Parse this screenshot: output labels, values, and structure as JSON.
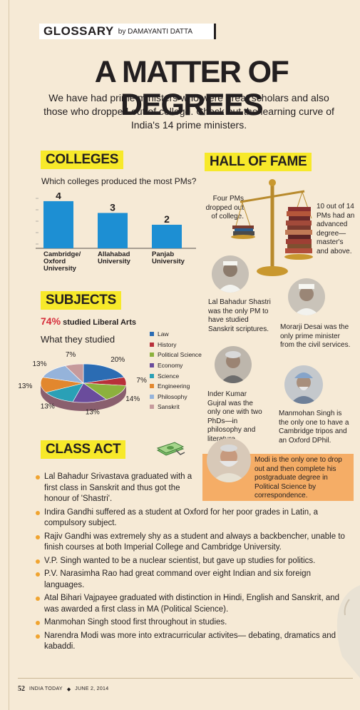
{
  "header": {
    "section": "GLOSSARY",
    "byline": "by DAMAYANTI DATTA"
  },
  "title": "A MATTER OF DEGREES",
  "intro": "We have had prime ministers who were great scholars and also those who dropped out of college. Check out the learning curve of India's 14 prime ministers.",
  "colleges": {
    "heading": "COLLEGES",
    "question": "Which colleges produced the most PMs?"
  },
  "subjects": {
    "heading": "SUBJECTS",
    "stat_pct": "74%",
    "stat_text": "studied Liberal Arts",
    "subheading": "What they studied"
  },
  "chart_data": [
    {
      "type": "bar",
      "title": "Which colleges produced the most PMs?",
      "categories": [
        "Cambridge/ Oxford University",
        "Allahabad University",
        "Panjab University"
      ],
      "category_lines": [
        [
          "Cambridge/",
          "Oxford",
          "University"
        ],
        [
          "Allahabad",
          "University"
        ],
        [
          "Panjab",
          "University"
        ]
      ],
      "values": [
        4,
        3,
        2
      ],
      "value_labels": [
        "4",
        "3",
        "2"
      ],
      "ylim": [
        0,
        4.6
      ],
      "bar_color": "#1d8fd3",
      "grid": false
    },
    {
      "type": "pie",
      "title": "What they studied",
      "style": "3d",
      "slices": [
        {
          "label": "Law",
          "value": 20,
          "text": "20%",
          "color": "#2b6cb3"
        },
        {
          "label": "History",
          "value": 7,
          "text": "7%",
          "color": "#b8303a"
        },
        {
          "label": "Political Science",
          "value": 14,
          "text": "14%",
          "color": "#8cb13d"
        },
        {
          "label": "Economy",
          "value": 13,
          "text": "13%",
          "color": "#6a4c9c"
        },
        {
          "label": "Science",
          "value": 13,
          "text": "13%",
          "color": "#2aa0b6"
        },
        {
          "label": "Engineering",
          "value": 13,
          "text": "13%",
          "color": "#e2872e"
        },
        {
          "label": "Philosophy",
          "value": 13,
          "text": "13%",
          "color": "#95b3da"
        },
        {
          "label": "Sanskrit",
          "value": 7,
          "text": "7%",
          "color": "#c69a9c"
        }
      ]
    }
  ],
  "hall_of_fame": {
    "heading": "HALL OF FAME",
    "dropped_out": "Four PMs dropped out of college.",
    "advanced": "10 out of 14 PMs had an advanced degree— master's and above.",
    "shastri": "Lal Bahadur Shastri was the only PM to have studied Sanskrit scriptures.",
    "desai": "Morarji Desai was the only prime minister from the civil services.",
    "gujral": "Inder Kumar Gujral was the only one with two PhDs—in philosophy and literature.",
    "manmohan": "Manmohan Singh is the only one to have a Cambridge tripos and an Oxford DPhil.",
    "modi": "Modi is the only one to drop out and then complete his postgraduate degree in Political Science by correspondence."
  },
  "class_act": {
    "heading": "CLASS ACT",
    "items": [
      "Lal Bahadur Srivastava graduated with a first class in Sanskrit and thus got the honour of 'Shastri'.",
      "Indira Gandhi suffered as a student at Oxford for her poor grades in Latin, a compulsory subject.",
      "Rajiv Gandhi was extremely shy as a student and always a backbencher, unable to finish courses at both Imperial College and Cambridge University.",
      "V.P. Singh wanted to be a nuclear scientist, but gave up studies for politics.",
      "P.V. Narasimha Rao had great command over eight Indian and six foreign languages.",
      "Atal Bihari Vajpayee graduated with distinction in Hindi, English and Sanskrit, and was awarded a first class in MA (Political Science).",
      "Manmohan Singh stood first throughout in studies.",
      "Narendra Modi was more into extracurricular activites— debating, dramatics and kabaddi."
    ]
  },
  "footer": {
    "page": "52",
    "publication": "INDIA TODAY",
    "date": "JUNE 2, 2014"
  },
  "colors": {
    "highlight": "#f7e92a",
    "accent_red": "#d62d3b",
    "bullet": "#f0a430",
    "modi_box": "#f5ad66",
    "paper": "#f6ead6"
  }
}
